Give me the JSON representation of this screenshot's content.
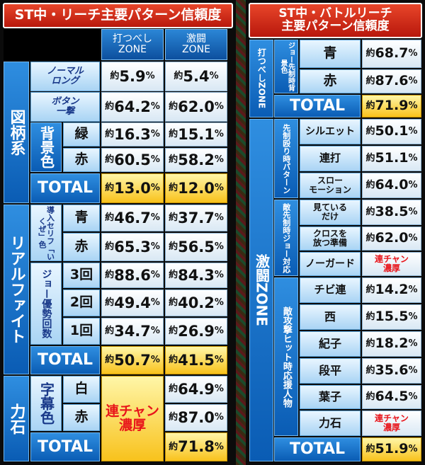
{
  "left": {
    "title": "ST中・リーチ主要パターン信頼度",
    "col1": "打つべし\nZONE",
    "col2": "激闘\nZONE",
    "g_zugara": "図柄系",
    "normal_long": "ノーマル\nロング",
    "button_ichigeki": "ボタン\n一撃",
    "haikei_iro": "背景色",
    "midori": "緑",
    "aka": "赤",
    "total": "TOTAL",
    "g_real": "リアルファイト",
    "doniyu": "導入セリフ「いくぜ」色",
    "ao": "青",
    "aka2": "赤",
    "joe_yusei": "ジョー優勢回数",
    "kai3": "3回",
    "kai2": "2回",
    "kai1": "1回",
    "total2": "TOTAL",
    "g_rikiishi": "力石",
    "jimaku_iro": "字幕色",
    "shiro": "白",
    "aka3": "赤",
    "renchan": "連チャン\n濃厚",
    "total3": "TOTAL",
    "yaku": "約",
    "pct": "%",
    "rows": {
      "normal_long": [
        "5.9",
        "5.4"
      ],
      "button": [
        "64.2",
        "62.0"
      ],
      "midori": [
        "16.3",
        "15.1"
      ],
      "aka": [
        "60.5",
        "58.2"
      ],
      "total": [
        "13.0",
        "12.0"
      ],
      "ao": [
        "46.7",
        "37.7"
      ],
      "aka2": [
        "65.3",
        "56.5"
      ],
      "kai3": [
        "88.6",
        "84.3"
      ],
      "kai2": [
        "49.4",
        "40.2"
      ],
      "kai1": [
        "34.7",
        "26.9"
      ],
      "total2": [
        "50.7",
        "41.5"
      ],
      "shiro": "64.9",
      "aka3": "87.0",
      "total3": "71.8"
    }
  },
  "right": {
    "title": "ST中・バトルリーチ\n主要パターン信頼度",
    "g_utsu": "打つべしZONE",
    "joe_senseiji": "ジョー先制時背景色",
    "ao": "青",
    "aka": "赤",
    "total": "TOTAL",
    "g_gekito": "激闘ZONE",
    "senseinaguri": "先制殴り時パターン",
    "silhouette": "シルエット",
    "renda": "連打",
    "slow": "スロー\nモーション",
    "teki_sensei": "敵先制時ジョー対応",
    "miteirudake": "見ている\nだけ",
    "cross": "クロスを\n放つ準備",
    "noguard": "ノーガード",
    "renchan": "連チャン\n濃厚",
    "tekiko": "敵攻撃ヒット時応援人物",
    "chibiren": "チビ連",
    "nishi": "西",
    "noriko": "紀子",
    "danpei": "段平",
    "yoko": "葉子",
    "rikiishi": "力石",
    "total2": "TOTAL",
    "yaku": "約",
    "pct": "%",
    "vals": {
      "ao": "68.7",
      "aka": "87.6",
      "total": "71.9",
      "silhouette": "50.1",
      "renda": "51.1",
      "slow": "64.0",
      "miteirudake": "38.5",
      "cross": "62.0",
      "chibiren": "14.2",
      "nishi": "15.5",
      "noriko": "18.2",
      "danpei": "35.6",
      "yoko": "64.5",
      "total2": "51.9"
    }
  }
}
